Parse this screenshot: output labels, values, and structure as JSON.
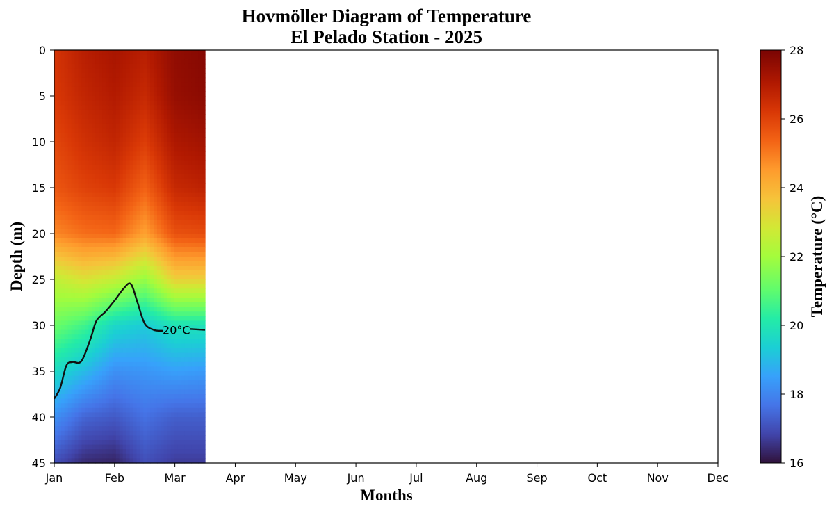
{
  "chart_data": {
    "type": "heatmap",
    "title": "Hovmöller Diagram of Temperature",
    "subtitle": "El Pelado Station - 2025",
    "xlabel": "Months",
    "ylabel": "Depth (m)",
    "x_categories": [
      "Jan",
      "Feb",
      "Mar",
      "Apr",
      "May",
      "Jun",
      "Jul",
      "Aug",
      "Sep",
      "Oct",
      "Nov",
      "Dec"
    ],
    "xlim": [
      0,
      11
    ],
    "ylim": [
      45,
      0
    ],
    "y_ticks": [
      0,
      5,
      10,
      15,
      20,
      25,
      30,
      35,
      40,
      45
    ],
    "colorbar": {
      "label": "Temperature (°C)",
      "range": [
        16,
        28
      ],
      "ticks": [
        16,
        18,
        20,
        22,
        24,
        26,
        28
      ],
      "colormap": "turbo"
    },
    "data_extent_months": [
      0,
      2.5
    ],
    "depths": [
      0,
      5,
      10,
      15,
      20,
      25,
      30,
      35,
      40,
      45
    ],
    "time": [
      0,
      0.5,
      1.0,
      1.5,
      2.0,
      2.5
    ],
    "temperature": [
      [
        26.3,
        26.9,
        27.2,
        26.9,
        27.6,
        27.8
      ],
      [
        26.2,
        26.7,
        27.0,
        26.6,
        27.5,
        27.7
      ],
      [
        25.9,
        26.4,
        26.7,
        26.1,
        27.1,
        27.3
      ],
      [
        25.6,
        26.0,
        26.2,
        25.4,
        26.6,
        26.8
      ],
      [
        24.8,
        25.2,
        25.3,
        24.4,
        25.7,
        25.8
      ],
      [
        22.5,
        23.0,
        22.6,
        21.8,
        23.4,
        23.4
      ],
      [
        21.2,
        20.6,
        19.6,
        19.3,
        19.9,
        19.9
      ],
      [
        19.7,
        19.0,
        18.2,
        18.3,
        18.5,
        18.4
      ],
      [
        18.2,
        17.4,
        17.2,
        17.6,
        17.3,
        17.3
      ],
      [
        17.0,
        16.4,
        16.3,
        17.0,
        16.7,
        16.7
      ]
    ],
    "contour": {
      "level": 20,
      "label": "20°C",
      "points": [
        [
          0.0,
          38.0
        ],
        [
          0.1,
          36.8
        ],
        [
          0.2,
          34.4
        ],
        [
          0.3,
          34.0
        ],
        [
          0.45,
          33.9
        ],
        [
          0.6,
          31.5
        ],
        [
          0.7,
          29.5
        ],
        [
          0.85,
          28.5
        ],
        [
          1.0,
          27.3
        ],
        [
          1.15,
          26.0
        ],
        [
          1.27,
          25.5
        ],
        [
          1.38,
          27.5
        ],
        [
          1.5,
          29.8
        ],
        [
          1.65,
          30.5
        ],
        [
          1.8,
          30.6
        ],
        [
          2.25,
          30.4
        ],
        [
          2.5,
          30.5
        ]
      ]
    }
  }
}
